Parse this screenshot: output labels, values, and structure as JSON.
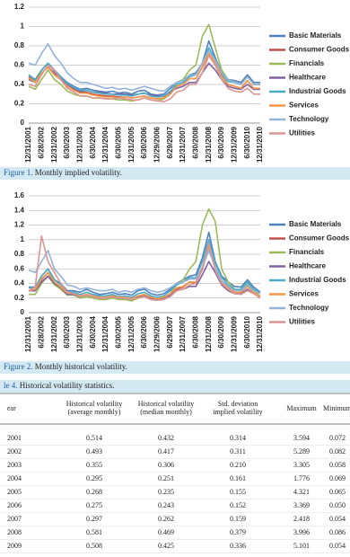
{
  "chart_data": [
    {
      "type": "line",
      "caption": {
        "label": "Figure 1.",
        "text": "Monthly implied volatility."
      },
      "categories": [
        "12/31/2001",
        null,
        "6/28/2002",
        null,
        "12/31/2002",
        null,
        "6/30/2003",
        null,
        "12/31/2003",
        null,
        "6/30/2004",
        null,
        "12/31/2004",
        null,
        "6/30/2005",
        null,
        "12/31/2005",
        null,
        "6/30/2006",
        null,
        "12/29/2006",
        null,
        "6/29/2007",
        null,
        "12/31/2007",
        null,
        "6/30/2008",
        null,
        "12/31/2008",
        null,
        "6/30/2009",
        null,
        "12/31/2009",
        null,
        "6/30/2010",
        null,
        "12/31/2010"
      ],
      "ylim": [
        0,
        1.2
      ],
      "yticks": [
        0,
        0.2,
        0.4,
        0.6,
        0.8,
        1,
        1.2
      ],
      "grid": true,
      "legend": "right",
      "series": [
        {
          "name": "Basic Materials",
          "color": "#4f81bd",
          "values": [
            0.5,
            0.45,
            0.55,
            0.62,
            0.55,
            0.48,
            0.42,
            0.38,
            0.35,
            0.36,
            0.34,
            0.33,
            0.32,
            0.33,
            0.31,
            0.32,
            0.3,
            0.33,
            0.34,
            0.3,
            0.29,
            0.3,
            0.36,
            0.42,
            0.44,
            0.5,
            0.52,
            0.62,
            0.85,
            0.68,
            0.52,
            0.45,
            0.44,
            0.42,
            0.5,
            0.42,
            0.42
          ]
        },
        {
          "name": "Consumer Goods",
          "color": "#c0504d",
          "values": [
            0.48,
            0.42,
            0.52,
            0.58,
            0.5,
            0.45,
            0.38,
            0.35,
            0.32,
            0.32,
            0.3,
            0.29,
            0.28,
            0.28,
            0.27,
            0.27,
            0.26,
            0.27,
            0.28,
            0.26,
            0.25,
            0.26,
            0.3,
            0.38,
            0.4,
            0.46,
            0.46,
            0.58,
            0.72,
            0.62,
            0.48,
            0.4,
            0.38,
            0.36,
            0.44,
            0.36,
            0.36
          ]
        },
        {
          "name": "Financials",
          "color": "#9bbb59",
          "values": [
            0.38,
            0.35,
            0.45,
            0.55,
            0.45,
            0.4,
            0.33,
            0.3,
            0.28,
            0.28,
            0.26,
            0.26,
            0.25,
            0.25,
            0.24,
            0.24,
            0.23,
            0.24,
            0.26,
            0.24,
            0.23,
            0.25,
            0.3,
            0.42,
            0.45,
            0.55,
            0.6,
            0.9,
            1.02,
            0.78,
            0.55,
            0.45,
            0.42,
            0.4,
            0.48,
            0.4,
            0.4
          ]
        },
        {
          "name": "Healthcare",
          "color": "#8064a2",
          "values": [
            0.45,
            0.42,
            0.52,
            0.58,
            0.52,
            0.46,
            0.4,
            0.36,
            0.33,
            0.34,
            0.32,
            0.32,
            0.31,
            0.3,
            0.3,
            0.3,
            0.29,
            0.3,
            0.31,
            0.29,
            0.28,
            0.28,
            0.32,
            0.36,
            0.38,
            0.42,
            0.42,
            0.52,
            0.62,
            0.55,
            0.45,
            0.38,
            0.36,
            0.35,
            0.4,
            0.35,
            0.35
          ]
        },
        {
          "name": "Industrial Goods",
          "color": "#4bacc6",
          "values": [
            0.5,
            0.44,
            0.55,
            0.62,
            0.54,
            0.48,
            0.41,
            0.37,
            0.34,
            0.34,
            0.32,
            0.31,
            0.3,
            0.3,
            0.29,
            0.29,
            0.28,
            0.3,
            0.31,
            0.28,
            0.27,
            0.28,
            0.33,
            0.4,
            0.42,
            0.48,
            0.5,
            0.62,
            0.78,
            0.66,
            0.5,
            0.43,
            0.42,
            0.4,
            0.48,
            0.4,
            0.4
          ]
        },
        {
          "name": "Services",
          "color": "#f79646",
          "values": [
            0.47,
            0.42,
            0.52,
            0.58,
            0.5,
            0.45,
            0.38,
            0.34,
            0.31,
            0.31,
            0.29,
            0.28,
            0.27,
            0.27,
            0.26,
            0.27,
            0.26,
            0.27,
            0.28,
            0.26,
            0.25,
            0.26,
            0.3,
            0.38,
            0.4,
            0.46,
            0.46,
            0.58,
            0.72,
            0.62,
            0.48,
            0.4,
            0.38,
            0.36,
            0.44,
            0.36,
            0.36
          ]
        },
        {
          "name": "Technology",
          "color": "#95b3d7",
          "values": [
            0.62,
            0.6,
            0.72,
            0.82,
            0.7,
            0.62,
            0.52,
            0.46,
            0.42,
            0.42,
            0.4,
            0.38,
            0.36,
            0.37,
            0.35,
            0.36,
            0.34,
            0.36,
            0.38,
            0.36,
            0.34,
            0.33,
            0.38,
            0.42,
            0.44,
            0.5,
            0.5,
            0.62,
            0.75,
            0.65,
            0.52,
            0.45,
            0.42,
            0.4,
            0.48,
            0.4,
            0.4
          ]
        },
        {
          "name": "Utilities",
          "color": "#d99694",
          "values": [
            0.4,
            0.38,
            0.5,
            0.6,
            0.55,
            0.45,
            0.36,
            0.32,
            0.28,
            0.28,
            0.26,
            0.26,
            0.25,
            0.25,
            0.26,
            0.25,
            0.24,
            0.24,
            0.26,
            0.24,
            0.23,
            0.22,
            0.25,
            0.32,
            0.34,
            0.4,
            0.4,
            0.52,
            0.7,
            0.6,
            0.45,
            0.36,
            0.33,
            0.32,
            0.36,
            0.3,
            0.3
          ]
        }
      ]
    },
    {
      "type": "line",
      "caption": {
        "label": "Figure 2.",
        "text": "Monthly historical volatility."
      },
      "categories": [
        "12/31/2001",
        null,
        "6/28/2002",
        null,
        "12/31/2002",
        null,
        "6/30/2003",
        null,
        "12/31/2003",
        null,
        "6/30/2004",
        null,
        "12/31/2004",
        null,
        "6/30/2005",
        null,
        "12/31/2005",
        null,
        "6/30/2006",
        null,
        "12/29/2006",
        null,
        "6/29/2007",
        null,
        "12/31/2007",
        null,
        "6/30/2008",
        null,
        "12/31/2008",
        null,
        "6/30/2009",
        null,
        "12/31/2009",
        null,
        "6/30/2010",
        null,
        "12/31/2010"
      ],
      "ylim": [
        0,
        1.6
      ],
      "yticks": [
        0,
        0.2,
        0.4,
        0.6,
        0.8,
        1,
        1.2,
        1.4,
        1.6
      ],
      "grid": true,
      "legend": "right",
      "series": [
        {
          "name": "Basic Materials",
          "color": "#4f81bd",
          "values": [
            0.35,
            0.35,
            0.5,
            0.6,
            0.45,
            0.4,
            0.3,
            0.3,
            0.28,
            0.32,
            0.28,
            0.25,
            0.26,
            0.28,
            0.25,
            0.26,
            0.24,
            0.3,
            0.32,
            0.26,
            0.24,
            0.26,
            0.32,
            0.4,
            0.45,
            0.5,
            0.52,
            0.75,
            1.1,
            0.7,
            0.5,
            0.42,
            0.36,
            0.35,
            0.45,
            0.35,
            0.28
          ]
        },
        {
          "name": "Consumer Goods",
          "color": "#c0504d",
          "values": [
            0.3,
            0.3,
            0.45,
            0.55,
            0.4,
            0.34,
            0.26,
            0.26,
            0.22,
            0.25,
            0.22,
            0.2,
            0.2,
            0.22,
            0.2,
            0.2,
            0.18,
            0.22,
            0.24,
            0.2,
            0.18,
            0.2,
            0.25,
            0.32,
            0.35,
            0.42,
            0.4,
            0.6,
            0.9,
            0.62,
            0.42,
            0.34,
            0.28,
            0.28,
            0.36,
            0.28,
            0.22
          ]
        },
        {
          "name": "Financials",
          "color": "#9bbb59",
          "values": [
            0.25,
            0.25,
            0.4,
            0.5,
            0.38,
            0.32,
            0.24,
            0.24,
            0.2,
            0.22,
            0.2,
            0.18,
            0.18,
            0.2,
            0.18,
            0.18,
            0.16,
            0.2,
            0.22,
            0.18,
            0.17,
            0.2,
            0.26,
            0.38,
            0.45,
            0.6,
            0.7,
            1.2,
            1.42,
            1.25,
            0.6,
            0.42,
            0.32,
            0.3,
            0.4,
            0.3,
            0.22
          ]
        },
        {
          "name": "Healthcare",
          "color": "#8064a2",
          "values": [
            0.3,
            0.3,
            0.42,
            0.5,
            0.4,
            0.34,
            0.25,
            0.25,
            0.22,
            0.24,
            0.22,
            0.2,
            0.2,
            0.22,
            0.2,
            0.2,
            0.18,
            0.22,
            0.24,
            0.2,
            0.18,
            0.2,
            0.24,
            0.3,
            0.32,
            0.36,
            0.36,
            0.52,
            0.7,
            0.55,
            0.38,
            0.3,
            0.26,
            0.26,
            0.32,
            0.26,
            0.22
          ]
        },
        {
          "name": "Industrial Goods",
          "color": "#4bacc6",
          "values": [
            0.34,
            0.34,
            0.5,
            0.6,
            0.45,
            0.38,
            0.28,
            0.28,
            0.25,
            0.28,
            0.25,
            0.23,
            0.23,
            0.25,
            0.22,
            0.23,
            0.21,
            0.26,
            0.28,
            0.23,
            0.21,
            0.23,
            0.3,
            0.38,
            0.42,
            0.48,
            0.48,
            0.7,
            1.0,
            0.68,
            0.48,
            0.38,
            0.32,
            0.32,
            0.42,
            0.32,
            0.26
          ]
        },
        {
          "name": "Services",
          "color": "#f79646",
          "values": [
            0.3,
            0.32,
            0.46,
            0.55,
            0.42,
            0.35,
            0.27,
            0.26,
            0.23,
            0.25,
            0.23,
            0.21,
            0.21,
            0.23,
            0.21,
            0.21,
            0.19,
            0.23,
            0.25,
            0.21,
            0.19,
            0.21,
            0.26,
            0.34,
            0.36,
            0.42,
            0.42,
            0.62,
            0.9,
            0.62,
            0.42,
            0.34,
            0.28,
            0.28,
            0.36,
            0.28,
            0.22
          ]
        },
        {
          "name": "Technology",
          "color": "#95b3d7",
          "values": [
            0.58,
            0.55,
            0.7,
            0.85,
            0.6,
            0.5,
            0.38,
            0.36,
            0.32,
            0.34,
            0.32,
            0.3,
            0.3,
            0.32,
            0.28,
            0.3,
            0.28,
            0.32,
            0.34,
            0.3,
            0.28,
            0.3,
            0.34,
            0.4,
            0.42,
            0.46,
            0.46,
            0.62,
            0.85,
            0.62,
            0.44,
            0.36,
            0.3,
            0.3,
            0.38,
            0.3,
            0.26
          ]
        },
        {
          "name": "Utilities",
          "color": "#d99694",
          "values": [
            0.3,
            0.35,
            1.05,
            0.7,
            0.55,
            0.4,
            0.28,
            0.26,
            0.22,
            0.24,
            0.22,
            0.2,
            0.2,
            0.22,
            0.2,
            0.2,
            0.18,
            0.2,
            0.22,
            0.18,
            0.17,
            0.18,
            0.22,
            0.3,
            0.32,
            0.38,
            0.4,
            0.62,
            0.95,
            0.58,
            0.4,
            0.32,
            0.26,
            0.25,
            0.3,
            0.26,
            0.2
          ]
        }
      ]
    }
  ],
  "table": {
    "caption": {
      "label": "le 4.",
      "text": "Historical volatility statistics."
    },
    "columns": [
      [
        "ear"
      ],
      [
        "Historical volatility",
        "(average monthly)"
      ],
      [
        "Historical volatility",
        "(median monthly)"
      ],
      [
        "Std. deviation",
        "implied volatility"
      ],
      [
        "Maximum"
      ],
      [
        "Minimum"
      ]
    ],
    "rows": [
      [
        "2001",
        "0.514",
        "0.432",
        "0.314",
        "3.594",
        "0.072"
      ],
      [
        "2002",
        "0.493",
        "0.417",
        "0.311",
        "5.289",
        "0.082"
      ],
      [
        "2003",
        "0.355",
        "0.306",
        "0.210",
        "3.305",
        "0.058"
      ],
      [
        "2004",
        "0.295",
        "0.251",
        "0.161",
        "1.776",
        "0.069"
      ],
      [
        "2005",
        "0.268",
        "0.235",
        "0.155",
        "4.321",
        "0.065"
      ],
      [
        "2006",
        "0.275",
        "0.243",
        "0.152",
        "3.369",
        "0.050"
      ],
      [
        "2007",
        "0.297",
        "0.262",
        "0.159",
        "2.418",
        "0.054"
      ],
      [
        "2008",
        "0.581",
        "0.469",
        "0.379",
        "3.996",
        "0.086"
      ],
      [
        "2009",
        "0.508",
        "0.425",
        "0.336",
        "5.101",
        "0.054"
      ]
    ]
  }
}
